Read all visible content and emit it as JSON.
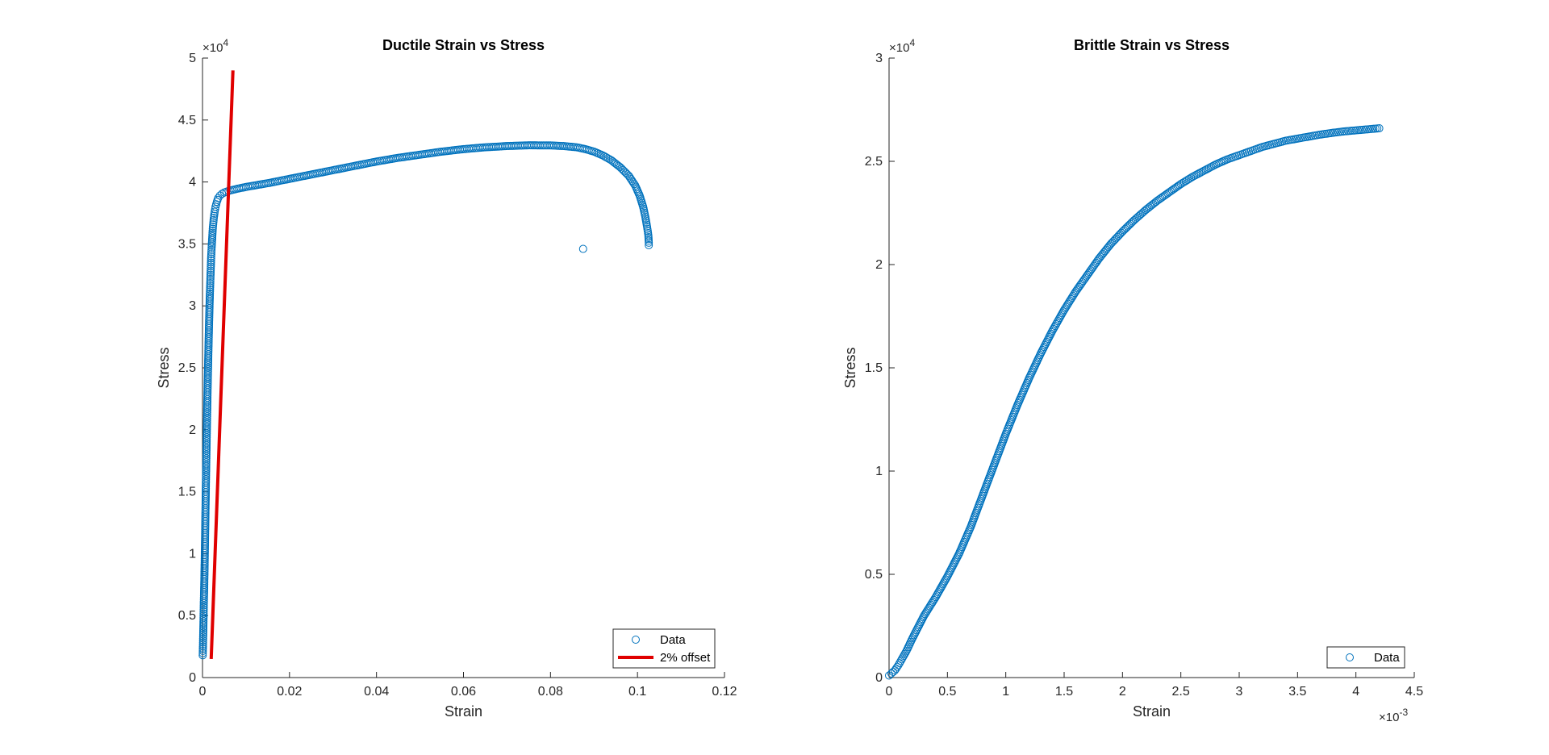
{
  "chart_data": [
    {
      "type": "scatter",
      "title": "Ductile Strain vs Stress",
      "xlabel": "Strain",
      "ylabel": "Stress",
      "xlim": [
        0,
        0.12
      ],
      "ylim": [
        0,
        50000
      ],
      "xticks": [
        0,
        0.02,
        0.04,
        0.06,
        0.08,
        0.1,
        0.12
      ],
      "xtick_labels": [
        "0",
        "0.02",
        "0.04",
        "0.06",
        "0.08",
        "0.1",
        "0.12"
      ],
      "yticks": [
        0,
        5000,
        10000,
        15000,
        20000,
        25000,
        30000,
        35000,
        40000,
        45000,
        50000
      ],
      "ytick_labels": [
        "0",
        "0.5",
        "1",
        "1.5",
        "2",
        "2.5",
        "3",
        "3.5",
        "4",
        "4.5",
        "5"
      ],
      "y_multiplier": {
        "base": "×10",
        "exp": "4"
      },
      "grid": false,
      "legend": {
        "placement": "bottom-right",
        "entries": [
          {
            "label": "Data",
            "marker": "open-circle"
          },
          {
            "label": "2% offset",
            "marker": "line"
          }
        ]
      },
      "series": [
        {
          "name": "Data",
          "kind": "scatter",
          "color": "#0072BD",
          "points": [
            [
              5e-05,
              1800
            ],
            [
              0.0001,
              2500
            ],
            [
              0.00015,
              3300
            ],
            [
              0.0002,
              4100
            ],
            [
              0.00025,
              5000
            ],
            [
              0.0003,
              6000
            ],
            [
              0.0004,
              7500
            ],
            [
              0.0005,
              9300
            ],
            [
              0.0006,
              11500
            ],
            [
              0.0007,
              13800
            ],
            [
              0.0008,
              16000
            ],
            [
              0.0009,
              18000
            ],
            [
              0.001,
              20000
            ],
            [
              0.0011,
              22000
            ],
            [
              0.0012,
              23800
            ],
            [
              0.0013,
              25500
            ],
            [
              0.0014,
              27000
            ],
            [
              0.0015,
              28500
            ],
            [
              0.0016,
              29800
            ],
            [
              0.0017,
              31000
            ],
            [
              0.0018,
              32000
            ],
            [
              0.0019,
              33000
            ],
            [
              0.002,
              34000
            ],
            [
              0.0021,
              34700
            ],
            [
              0.0022,
              35300
            ],
            [
              0.0023,
              35900
            ],
            [
              0.0024,
              36400
            ],
            [
              0.0026,
              37100
            ],
            [
              0.0028,
              37600
            ],
            [
              0.003,
              38000
            ],
            [
              0.0033,
              38400
            ],
            [
              0.0036,
              38700
            ],
            [
              0.004,
              38900
            ],
            [
              0.0045,
              39050
            ],
            [
              0.005,
              39150
            ],
            [
              0.006,
              39280
            ],
            [
              0.008,
              39450
            ],
            [
              0.01,
              39600
            ],
            [
              0.015,
              39900
            ],
            [
              0.02,
              40250
            ],
            [
              0.025,
              40600
            ],
            [
              0.03,
              40950
            ],
            [
              0.035,
              41300
            ],
            [
              0.04,
              41650
            ],
            [
              0.045,
              41950
            ],
            [
              0.05,
              42200
            ],
            [
              0.055,
              42450
            ],
            [
              0.06,
              42650
            ],
            [
              0.065,
              42800
            ],
            [
              0.07,
              42900
            ],
            [
              0.075,
              42960
            ],
            [
              0.08,
              42950
            ],
            [
              0.083,
              42900
            ],
            [
              0.086,
              42800
            ],
            [
              0.088,
              42650
            ],
            [
              0.09,
              42450
            ],
            [
              0.092,
              42150
            ],
            [
              0.094,
              41750
            ],
            [
              0.096,
              41200
            ],
            [
              0.098,
              40500
            ],
            [
              0.0995,
              39700
            ],
            [
              0.1005,
              38900
            ],
            [
              0.1013,
              38000
            ],
            [
              0.1018,
              37200
            ],
            [
              0.1022,
              36400
            ],
            [
              0.1025,
              35700
            ],
            [
              0.1026,
              35100
            ],
            [
              0.1026,
              34900
            ],
            [
              0.0875,
              34600
            ]
          ]
        },
        {
          "name": "2% offset",
          "kind": "line",
          "color": "#E00000",
          "points": [
            [
              0.002,
              1500
            ],
            [
              0.007,
              49000
            ]
          ]
        }
      ]
    },
    {
      "type": "scatter",
      "title": "Brittle Strain vs Stress",
      "xlabel": "Strain",
      "ylabel": "Stress",
      "xlim": [
        0,
        0.0045
      ],
      "ylim": [
        0,
        30000
      ],
      "xticks": [
        0,
        0.0005,
        0.001,
        0.0015,
        0.002,
        0.0025,
        0.003,
        0.0035,
        0.004,
        0.0045
      ],
      "xtick_labels": [
        "0",
        "0.5",
        "1",
        "1.5",
        "2",
        "2.5",
        "3",
        "3.5",
        "4",
        "4.5"
      ],
      "yticks": [
        0,
        5000,
        10000,
        15000,
        20000,
        25000,
        30000
      ],
      "ytick_labels": [
        "0",
        "0.5",
        "1",
        "1.5",
        "2",
        "2.5",
        "3"
      ],
      "x_multiplier": {
        "base": "×10",
        "exp": "-3"
      },
      "y_multiplier": {
        "base": "×10",
        "exp": "4"
      },
      "grid": false,
      "legend": {
        "placement": "bottom-right",
        "entries": [
          {
            "label": "Data",
            "marker": "open-circle"
          }
        ]
      },
      "series": [
        {
          "name": "Data",
          "kind": "scatter",
          "color": "#0072BD",
          "points": [
            [
              0.0,
              100
            ],
            [
              2e-05,
              200
            ],
            [
              5e-05,
              350
            ],
            [
              8e-05,
              600
            ],
            [
              0.0001,
              800
            ],
            [
              0.00015,
              1300
            ],
            [
              0.0002,
              1900
            ],
            [
              0.0003,
              3000
            ],
            [
              0.0004,
              3900
            ],
            [
              0.0005,
              4900
            ],
            [
              0.0006,
              6000
            ],
            [
              0.0007,
              7300
            ],
            [
              0.0008,
              8800
            ],
            [
              0.0009,
              10300
            ],
            [
              0.001,
              11800
            ],
            [
              0.0011,
              13200
            ],
            [
              0.0012,
              14500
            ],
            [
              0.0013,
              15700
            ],
            [
              0.0014,
              16800
            ],
            [
              0.0015,
              17800
            ],
            [
              0.0016,
              18700
            ],
            [
              0.0017,
              19500
            ],
            [
              0.0018,
              20300
            ],
            [
              0.0019,
              21000
            ],
            [
              0.002,
              21600
            ],
            [
              0.0021,
              22150
            ],
            [
              0.0022,
              22650
            ],
            [
              0.0023,
              23100
            ],
            [
              0.0024,
              23500
            ],
            [
              0.0025,
              23900
            ],
            [
              0.0026,
              24250
            ],
            [
              0.0027,
              24550
            ],
            [
              0.0028,
              24850
            ],
            [
              0.0029,
              25100
            ],
            [
              0.003,
              25300
            ],
            [
              0.0031,
              25500
            ],
            [
              0.0032,
              25700
            ],
            [
              0.0033,
              25850
            ],
            [
              0.0034,
              26000
            ],
            [
              0.0035,
              26100
            ],
            [
              0.0036,
              26200
            ],
            [
              0.0037,
              26300
            ],
            [
              0.0038,
              26380
            ],
            [
              0.0039,
              26450
            ],
            [
              0.004,
              26500
            ],
            [
              0.0041,
              26550
            ],
            [
              0.0042,
              26600
            ]
          ]
        }
      ]
    }
  ]
}
